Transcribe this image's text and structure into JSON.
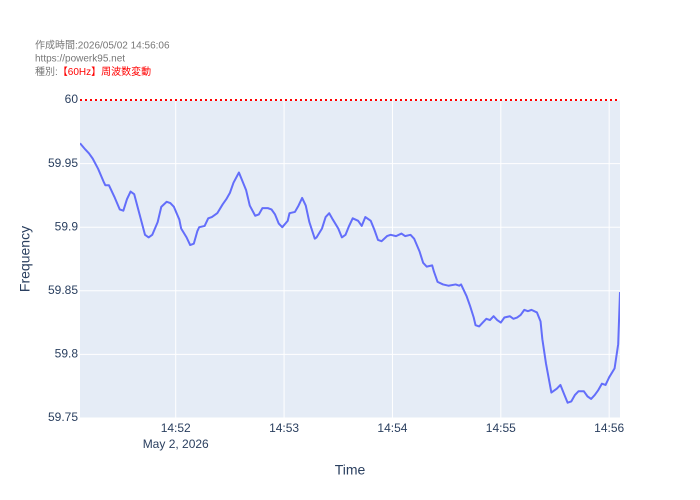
{
  "chart_data": {
    "type": "line",
    "header_lines": [
      "作成時間:2026/05/02 14:56:06",
      "https://powerk95.net"
    ],
    "kind_label": "種別:",
    "kind_value": "【60Hz】周波数変動",
    "kind_value_color": "#ff0000",
    "x_label": "Time",
    "y_label": "Frequency",
    "x": [
      "2026-05-02 14:51:07",
      "2026-05-02 14:51:10",
      "2026-05-02 14:51:12",
      "2026-05-02 14:51:14",
      "2026-05-02 14:51:17",
      "2026-05-02 14:51:20",
      "2026-05-02 14:51:21",
      "2026-05-02 14:51:23",
      "2026-05-02 14:51:26",
      "2026-05-02 14:51:29",
      "2026-05-02 14:51:31",
      "2026-05-02 14:51:33",
      "2026-05-02 14:51:35",
      "2026-05-02 14:51:37",
      "2026-05-02 14:51:40",
      "2026-05-02 14:51:43",
      "2026-05-02 14:51:45",
      "2026-05-02 14:51:47",
      "2026-05-02 14:51:50",
      "2026-05-02 14:51:52",
      "2026-05-02 14:51:55",
      "2026-05-02 14:51:57",
      "2026-05-02 14:51:59",
      "2026-05-02 14:52:02",
      "2026-05-02 14:52:03",
      "2026-05-02 14:52:06",
      "2026-05-02 14:52:08",
      "2026-05-02 14:52:10",
      "2026-05-02 14:52:12",
      "2026-05-02 14:52:13",
      "2026-05-02 14:52:16",
      "2026-05-02 14:52:18",
      "2026-05-02 14:52:20",
      "2026-05-02 14:52:23",
      "2026-05-02 14:52:26",
      "2026-05-02 14:52:28",
      "2026-05-02 14:52:30",
      "2026-05-02 14:52:32",
      "2026-05-02 14:52:35",
      "2026-05-02 14:52:37",
      "2026-05-02 14:52:39",
      "2026-05-02 14:52:41",
      "2026-05-02 14:52:44",
      "2026-05-02 14:52:46",
      "2026-05-02 14:52:48",
      "2026-05-02 14:52:51",
      "2026-05-02 14:52:53",
      "2026-05-02 14:52:55",
      "2026-05-02 14:52:57",
      "2026-05-02 14:52:59",
      "2026-05-02 14:53:02",
      "2026-05-02 14:53:03",
      "2026-05-02 14:53:06",
      "2026-05-02 14:53:08",
      "2026-05-02 14:53:10",
      "2026-05-02 14:53:12",
      "2026-05-02 14:53:14",
      "2026-05-02 14:53:17",
      "2026-05-02 14:53:18",
      "2026-05-02 14:53:21",
      "2026-05-02 14:53:23",
      "2026-05-02 14:53:25",
      "2026-05-02 14:53:27",
      "2026-05-02 14:53:30",
      "2026-05-02 14:53:32",
      "2026-05-02 14:53:34",
      "2026-05-02 14:53:36",
      "2026-05-02 14:53:38",
      "2026-05-02 14:53:41",
      "2026-05-02 14:53:43",
      "2026-05-02 14:53:45",
      "2026-05-02 14:53:48",
      "2026-05-02 14:53:50",
      "2026-05-02 14:53:52",
      "2026-05-02 14:53:54",
      "2026-05-02 14:53:57",
      "2026-05-02 14:53:59",
      "2026-05-02 14:54:02",
      "2026-05-02 14:54:05",
      "2026-05-02 14:54:07",
      "2026-05-02 14:54:10",
      "2026-05-02 14:54:12",
      "2026-05-02 14:54:15",
      "2026-05-02 14:54:17",
      "2026-05-02 14:54:19",
      "2026-05-02 14:54:22",
      "2026-05-02 14:54:23",
      "2026-05-02 14:54:25",
      "2026-05-02 14:54:28",
      "2026-05-02 14:54:31",
      "2026-05-02 14:54:35",
      "2026-05-02 14:54:37",
      "2026-05-02 14:54:38",
      "2026-05-02 14:54:41",
      "2026-05-02 14:54:43",
      "2026-05-02 14:54:45",
      "2026-05-02 14:54:46",
      "2026-05-02 14:54:48",
      "2026-05-02 14:54:50",
      "2026-05-02 14:54:52",
      "2026-05-02 14:54:54",
      "2026-05-02 14:54:56",
      "2026-05-02 14:54:58",
      "2026-05-02 14:55:00",
      "2026-05-02 14:55:02",
      "2026-05-02 14:55:05",
      "2026-05-02 14:55:07",
      "2026-05-02 14:55:09",
      "2026-05-02 14:55:11",
      "2026-05-02 14:55:13",
      "2026-05-02 14:55:15",
      "2026-05-02 14:55:17",
      "2026-05-02 14:55:20",
      "2026-05-02 14:55:22",
      "2026-05-02 14:55:23",
      "2026-05-02 14:55:25",
      "2026-05-02 14:55:28",
      "2026-05-02 14:55:31",
      "2026-05-02 14:55:33",
      "2026-05-02 14:55:35",
      "2026-05-02 14:55:37",
      "2026-05-02 14:55:39",
      "2026-05-02 14:55:41",
      "2026-05-02 14:55:43",
      "2026-05-02 14:55:46",
      "2026-05-02 14:55:48",
      "2026-05-02 14:55:50",
      "2026-05-02 14:55:52",
      "2026-05-02 14:55:54",
      "2026-05-02 14:55:56",
      "2026-05-02 14:55:58",
      "2026-05-02 14:56:00",
      "2026-05-02 14:56:03",
      "2026-05-02 14:56:05",
      "2026-05-02 14:56:06"
    ],
    "series": [
      {
        "color": "#636efa",
        "values": [
          59.966,
          59.961,
          59.958,
          59.954,
          59.946,
          59.936,
          59.933,
          59.933,
          59.924,
          59.914,
          59.913,
          59.922,
          59.928,
          59.926,
          59.91,
          59.894,
          59.892,
          59.894,
          59.904,
          59.916,
          59.92,
          59.919,
          59.916,
          59.906,
          59.899,
          59.892,
          59.886,
          59.887,
          59.897,
          59.9,
          59.901,
          59.907,
          59.908,
          59.911,
          59.918,
          59.922,
          59.927,
          59.935,
          59.943,
          59.936,
          59.929,
          59.917,
          59.909,
          59.91,
          59.915,
          59.915,
          59.914,
          59.91,
          59.903,
          59.9,
          59.905,
          59.911,
          59.912,
          59.917,
          59.923,
          59.917,
          59.904,
          59.891,
          59.892,
          59.899,
          59.908,
          59.911,
          59.906,
          59.899,
          59.892,
          59.894,
          59.901,
          59.907,
          59.905,
          59.901,
          59.908,
          59.905,
          59.898,
          59.89,
          59.889,
          59.893,
          59.894,
          59.893,
          59.895,
          59.893,
          59.894,
          59.891,
          59.881,
          59.872,
          59.869,
          59.87,
          59.865,
          59.857,
          59.855,
          59.854,
          59.855,
          59.854,
          59.855,
          59.846,
          59.838,
          59.829,
          59.823,
          59.822,
          59.825,
          59.828,
          59.827,
          59.83,
          59.827,
          59.825,
          59.829,
          59.83,
          59.828,
          59.829,
          59.831,
          59.835,
          59.834,
          59.835,
          59.833,
          59.826,
          59.812,
          59.793,
          59.77,
          59.773,
          59.776,
          59.769,
          59.762,
          59.763,
          59.768,
          59.771,
          59.771,
          59.767,
          59.765,
          59.768,
          59.772,
          59.777,
          59.776,
          59.782,
          59.789,
          59.808,
          59.849
        ]
      }
    ],
    "xlim": [
      "2026-05-02 14:51:07",
      "2026-05-02 14:56:06"
    ],
    "xticks": [
      {
        "value": "2026-05-02 14:52:00",
        "label": "14:52"
      },
      {
        "value": "2026-05-02 14:53:00",
        "label": "14:53"
      },
      {
        "value": "2026-05-02 14:54:00",
        "label": "14:54"
      },
      {
        "value": "2026-05-02 14:55:00",
        "label": "14:55"
      },
      {
        "value": "2026-05-02 14:56:00",
        "label": "14:56"
      }
    ],
    "x_date_label": "May 2, 2026",
    "ylim": [
      59.75,
      60
    ],
    "yticks": [
      59.75,
      59.8,
      59.85,
      59.9,
      59.95,
      60
    ],
    "reference_line": {
      "value": 60,
      "color": "#ff0000"
    },
    "grid": true
  }
}
